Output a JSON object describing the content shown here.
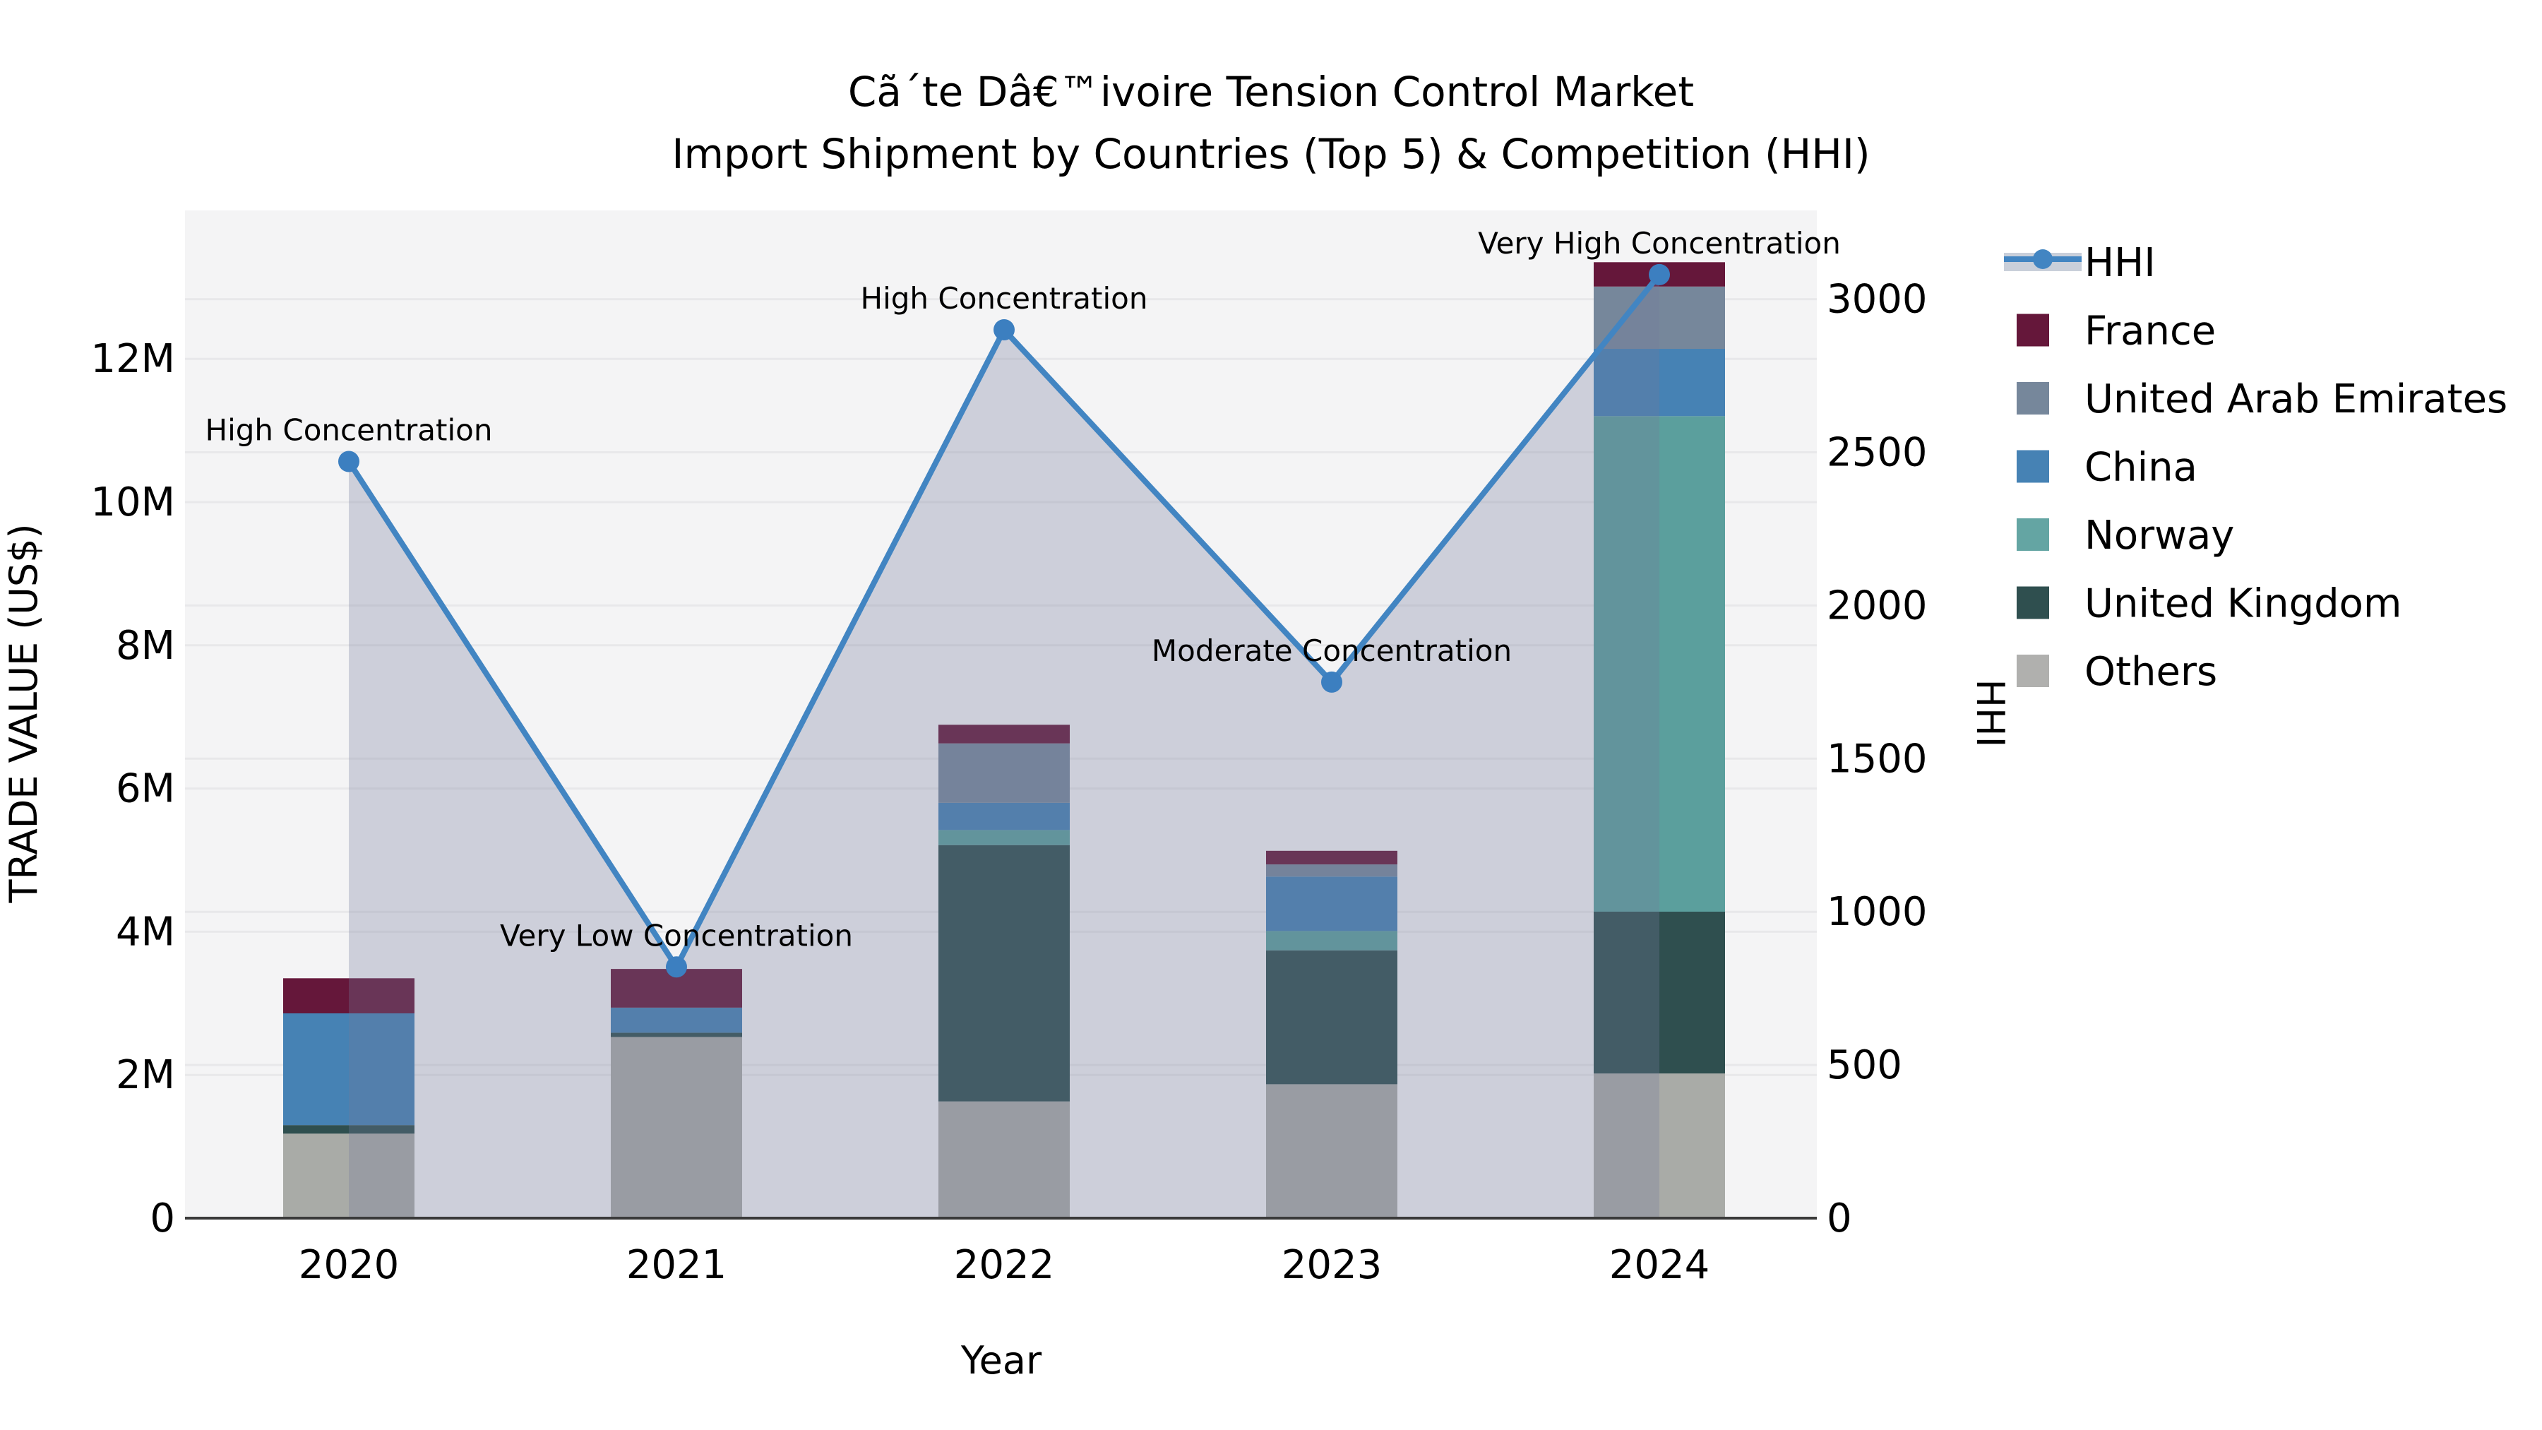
{
  "chart_data": {
    "type": "bar",
    "subtype": "stacked-bar-with-line-overlay",
    "title_line1": "Cã´te Dâ€™ivoire Tension Control Market",
    "title_line2": "Import Shipment by Countries (Top 5) & Competition (HHI)",
    "xlabel": "Year",
    "ylabel_left": "TRADE VALUE (US$)",
    "ylabel_right": "HHI",
    "categories": [
      "2020",
      "2021",
      "2022",
      "2023",
      "2024"
    ],
    "values_unit": "millions US$",
    "ylim_left_millions": [
      0,
      14.07
    ],
    "ylim_right_hhi": [
      0,
      3290
    ],
    "grid": "on",
    "legend_position": "right",
    "plot_bg_color": "#f4f4f5",
    "gridline_color": "#e8e8ea",
    "axisline_color": "#3a3a3a",
    "series": [
      {
        "name": "Others",
        "color": "#a9aba7",
        "values": [
          1.18,
          2.53,
          1.63,
          1.87,
          2.02
        ]
      },
      {
        "name": "United Kingdom",
        "color": "#2f4f4f",
        "values": [
          0.12,
          0.06,
          3.58,
          1.87,
          2.26
        ]
      },
      {
        "name": "Norway",
        "color": "#5b9f9d",
        "values": [
          0.0,
          0.0,
          0.21,
          0.27,
          6.92
        ]
      },
      {
        "name": "China",
        "color": "#4682b4",
        "values": [
          1.56,
          0.35,
          0.38,
          0.76,
          0.94
        ]
      },
      {
        "name": "United Arab Emirates",
        "color": "#76879b",
        "values": [
          0.0,
          0.0,
          0.83,
          0.17,
          0.87
        ]
      },
      {
        "name": "France",
        "color": "#65173a",
        "values": [
          0.49,
          0.54,
          0.26,
          0.19,
          0.34
        ]
      }
    ],
    "bar_totals_millions": [
      3.35,
      3.48,
      6.89,
      5.13,
      13.35
    ],
    "hhi": {
      "name": "HHI",
      "line_color": "#4285c2",
      "marker_color": "#3c7fc0",
      "area_color": "#757c9d",
      "area_opacity": 0.3,
      "values": [
        2470,
        820,
        2900,
        1750,
        3080
      ],
      "annotations": [
        "High Concentration",
        "Very Low Concentration",
        "High Concentration",
        "Moderate Concentration",
        "Very High Concentration"
      ]
    },
    "y_left_ticks": [
      {
        "label": "0",
        "value": 0
      },
      {
        "label": "2M",
        "value": 2
      },
      {
        "label": "4M",
        "value": 4
      },
      {
        "label": "6M",
        "value": 6
      },
      {
        "label": "8M",
        "value": 8
      },
      {
        "label": "10M",
        "value": 10
      },
      {
        "label": "12M",
        "value": 12
      }
    ],
    "y_right_ticks": [
      {
        "label": "0",
        "value": 0
      },
      {
        "label": "500",
        "value": 500
      },
      {
        "label": "1000",
        "value": 1000
      },
      {
        "label": "1500",
        "value": 1500
      },
      {
        "label": "2000",
        "value": 2000
      },
      {
        "label": "2500",
        "value": 2500
      },
      {
        "label": "3000",
        "value": 3000
      }
    ]
  },
  "legend": {
    "items": [
      {
        "label": "HHI",
        "type": "line",
        "color": "#4285c2",
        "band_color": "#c9cfda"
      },
      {
        "label": "France",
        "type": "swatch",
        "color": "#65173a"
      },
      {
        "label": "United Arab Emirates",
        "type": "swatch",
        "color": "#76879b"
      },
      {
        "label": "China",
        "type": "swatch",
        "color": "#4682b4"
      },
      {
        "label": "Norway",
        "type": "swatch",
        "color": "#64a5a3"
      },
      {
        "label": "United Kingdom",
        "type": "swatch",
        "color": "#2f4f4f"
      },
      {
        "label": "Others",
        "type": "swatch",
        "color": "#b0b0ae"
      }
    ]
  }
}
